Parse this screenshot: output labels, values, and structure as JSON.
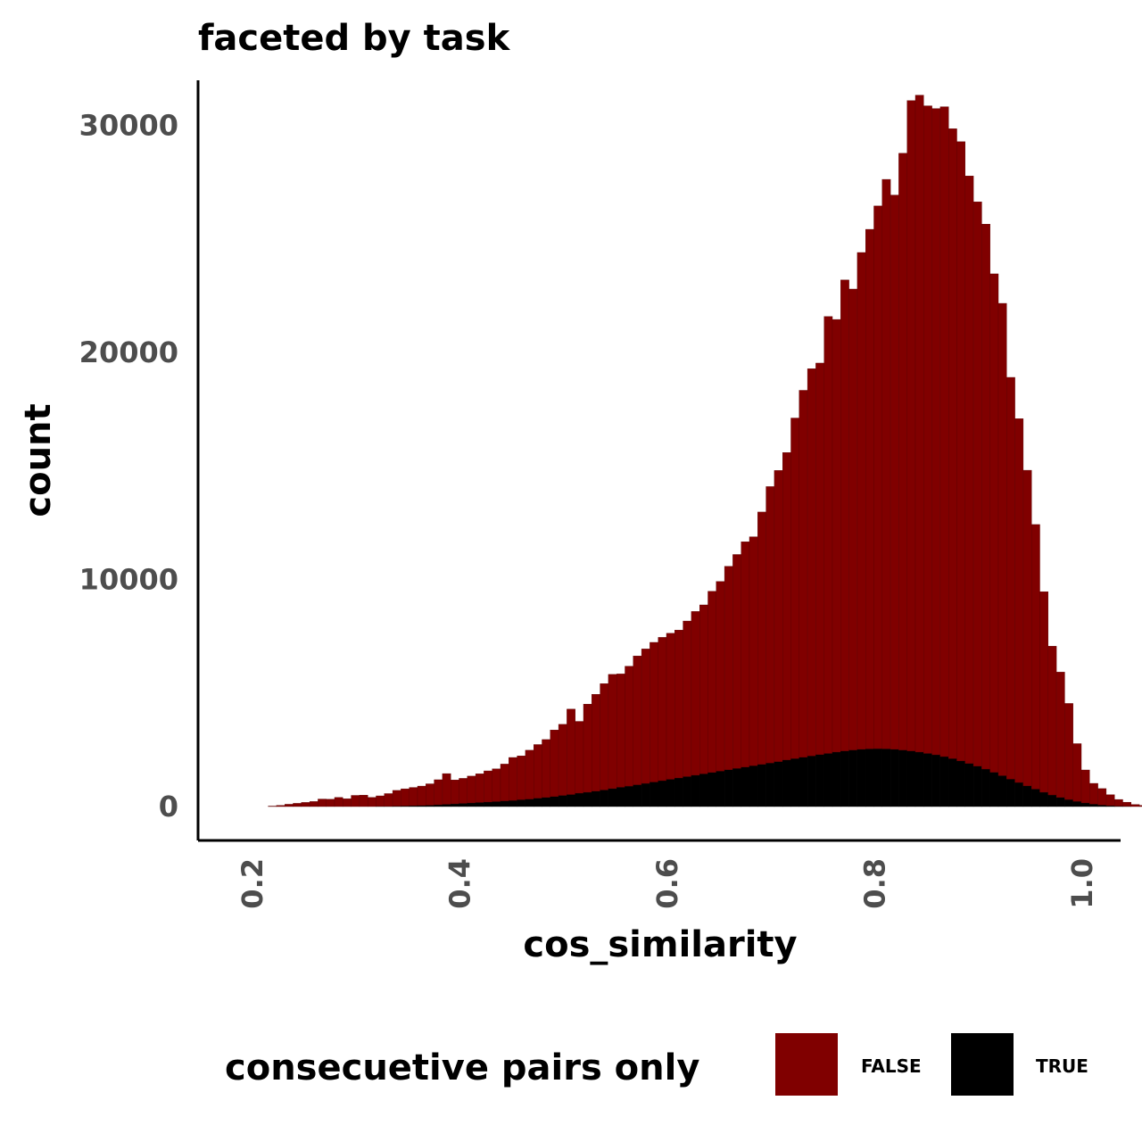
{
  "chart_data": {
    "type": "bar",
    "title": "faceted by task",
    "xlabel": "cos_similarity",
    "ylabel": "count",
    "xlim": [
      0.18,
      1.02
    ],
    "ylim": [
      0,
      31000
    ],
    "x_ticks": [
      0.2,
      0.4,
      0.6,
      0.8,
      1.0
    ],
    "x_tick_labels": [
      "0.2",
      "0.4",
      "0.6",
      "0.8",
      "1.0"
    ],
    "y_ticks": [
      0,
      10000,
      20000,
      30000
    ],
    "y_tick_labels": [
      "0",
      "10000",
      "20000",
      "30000"
    ],
    "grid": false,
    "stacked": true,
    "legend": {
      "title": "consecuetive pairs only",
      "position": "bottom"
    },
    "bin_width": 0.008,
    "x_start": 0.2,
    "series": [
      {
        "name": "FALSE",
        "color": "#800000",
        "values": [
          0,
          0,
          20,
          50,
          100,
          140,
          180,
          220,
          330,
          320,
          400,
          340,
          490,
          500,
          400,
          460,
          560,
          690,
          750,
          800,
          850,
          940,
          1100,
          1350,
          1050,
          1100,
          1180,
          1260,
          1370,
          1440,
          1620,
          1890,
          1930,
          2150,
          2360,
          2550,
          2930,
          3130,
          3760,
          3160,
          3880,
          4260,
          4680,
          5030,
          4990,
          5280,
          5670,
          5920,
          6150,
          6310,
          6430,
          6510,
          6850,
          7210,
          7440,
          7980,
          8350,
          8960,
          9420,
          9920,
          10080,
          11110,
          12170,
          12820,
          13540,
          15000,
          16160,
          17050,
          17240,
          19240,
          19050,
          20740,
          20300,
          21880,
          22880,
          23900,
          25080,
          24410,
          26280,
          28640,
          28930,
          28520,
          28460,
          28620,
          27740,
          27270,
          25870,
          24850,
          24000,
          21950,
          20800,
          17690,
          16020,
          13900,
          11650,
          8830,
          6550,
          5520,
          4230,
          2540,
          1450,
          910,
          720,
          480,
          290,
          180,
          90,
          50,
          20,
          0,
          0,
          0,
          0,
          0,
          0
        ],
        "values_note": "stacked on top of TRUE"
      },
      {
        "name": "TRUE",
        "color": "#000000",
        "values": [
          0,
          0,
          0,
          0,
          0,
          0,
          0,
          0,
          0,
          0,
          0,
          0,
          0,
          0,
          0,
          10,
          10,
          20,
          30,
          40,
          50,
          60,
          80,
          100,
          120,
          140,
          160,
          180,
          200,
          220,
          250,
          270,
          300,
          330,
          370,
          400,
          440,
          490,
          530,
          590,
          630,
          680,
          730,
          790,
          850,
          900,
          960,
          1020,
          1080,
          1140,
          1200,
          1260,
          1320,
          1380,
          1440,
          1500,
          1560,
          1620,
          1680,
          1740,
          1800,
          1860,
          1920,
          1980,
          2050,
          2110,
          2170,
          2230,
          2290,
          2340,
          2400,
          2450,
          2490,
          2520,
          2540,
          2550,
          2540,
          2520,
          2490,
          2450,
          2400,
          2340,
          2280,
          2200,
          2110,
          2010,
          1900,
          1780,
          1650,
          1510,
          1360,
          1210,
          1060,
          910,
          770,
          630,
          510,
          400,
          310,
          230,
          160,
          110,
          70,
          40,
          20,
          10,
          0,
          0,
          0,
          0,
          0,
          0,
          0,
          0
        ]
      }
    ]
  }
}
